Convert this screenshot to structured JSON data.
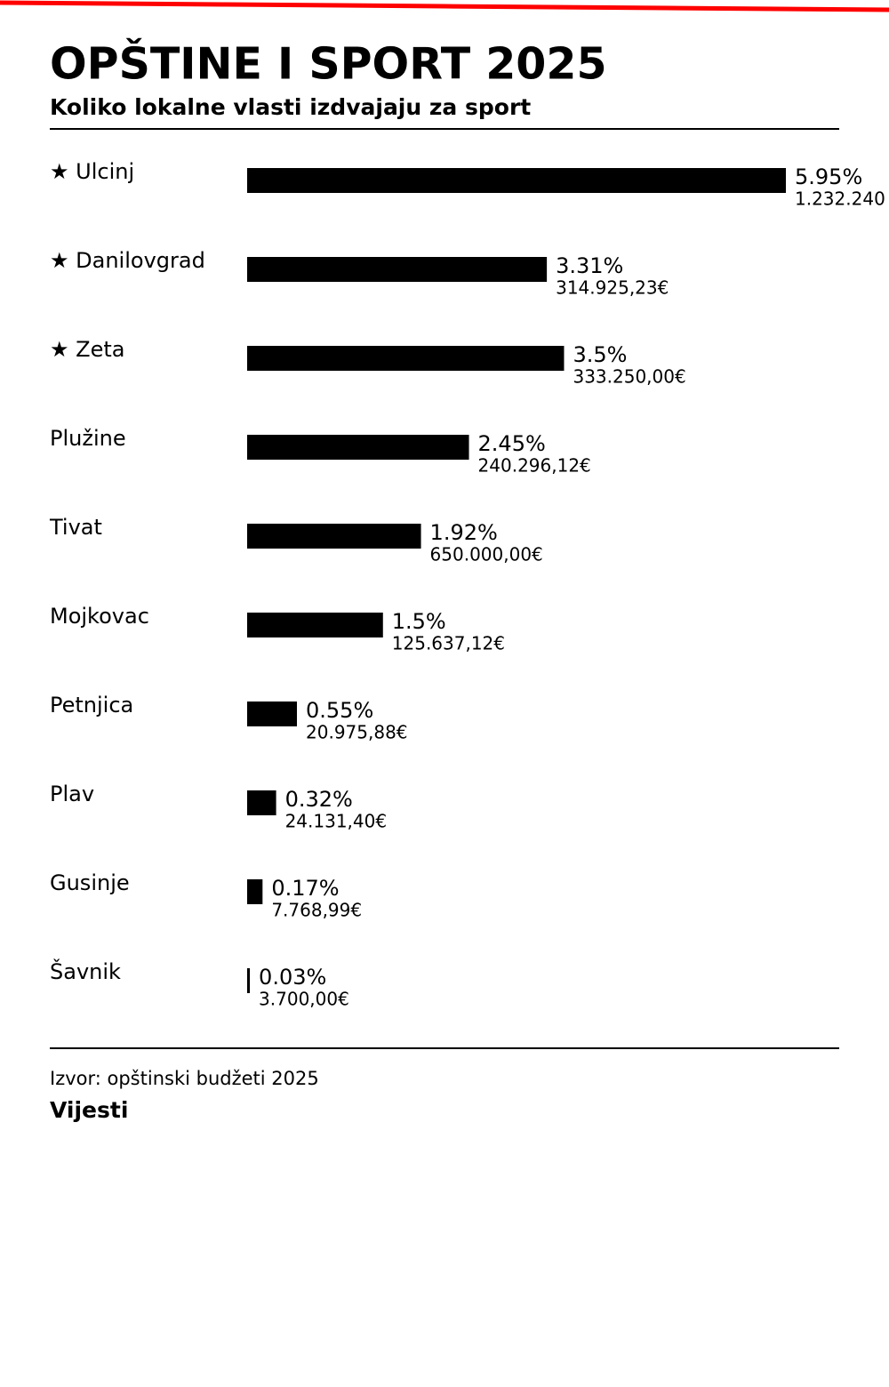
{
  "chart_data": {
    "type": "bar",
    "orientation": "horizontal",
    "title": "OPŠTINE I SPORT 2025",
    "subtitle": "Koliko lokalne vlasti izdvajaju za sport",
    "categories": [
      "★ Ulcinj",
      "★ Danilovgrad",
      "★ Zeta",
      "Plužine",
      "Tivat",
      "Mojkovac",
      "Petnjica",
      "Plav",
      "Gusinje",
      "Šavnik"
    ],
    "values": [
      5.95,
      3.31,
      3.5,
      2.45,
      1.92,
      1.5,
      0.55,
      0.32,
      0.17,
      0.03
    ],
    "value_labels": [
      "5.95%",
      "3.31%",
      "3.5%",
      "2.45%",
      "1.92%",
      "1.5%",
      "0.55%",
      "0.32%",
      "0.17%",
      "0.03%"
    ],
    "amount_labels": [
      "1.232.240",
      "314.925,23€",
      "333.250,00€",
      "240.296,12€",
      "650.000,00€",
      "125.637,12€",
      "20.975,88€",
      "24.131,40€",
      "7.768,99€",
      "3.700,00€"
    ],
    "color": "#000000",
    "source": "Izvor: opštinski budžeti 2025",
    "brand": "Vijesti"
  }
}
